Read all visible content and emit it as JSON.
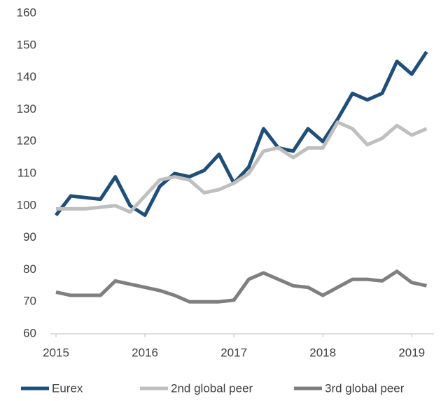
{
  "chart_data": {
    "type": "line",
    "x": [
      2015,
      2015.1667,
      2015.3333,
      2015.5,
      2015.6667,
      2015.8333,
      2016,
      2016.1667,
      2016.3333,
      2016.5,
      2016.6667,
      2016.8333,
      2017,
      2017.1667,
      2017.3333,
      2017.5,
      2017.6667,
      2017.8333,
      2018,
      2018.1667,
      2018.3333,
      2018.5,
      2018.6667,
      2018.8333,
      2019,
      2019.1667
    ],
    "series": [
      {
        "name": "Eurex",
        "color": "#1f4e79",
        "values": [
          97,
          103,
          102.5,
          102,
          109,
          100,
          97,
          106,
          110,
          109,
          111,
          116,
          107,
          112,
          124,
          118,
          117,
          124,
          120,
          127,
          135,
          133,
          135,
          145,
          141,
          148
        ]
      },
      {
        "name": "2nd global peer",
        "color": "#bfbfbf",
        "values": [
          99,
          99,
          99,
          99.5,
          100,
          98,
          103,
          108,
          109,
          108,
          104,
          105,
          107,
          110,
          117,
          118,
          115,
          118,
          118,
          126,
          124,
          119,
          121,
          125,
          122,
          124
        ]
      },
      {
        "name": "3rd global peer",
        "color": "#7f7f7f",
        "values": [
          73,
          72,
          72,
          72,
          76.5,
          75.5,
          74.5,
          73.5,
          72,
          70,
          70,
          70,
          70.5,
          77,
          79,
          77,
          75,
          74.5,
          72,
          74.5,
          77,
          77,
          76.5,
          79.5,
          76,
          75
        ]
      }
    ],
    "xlim": [
      2015,
      2019.25
    ],
    "xticks": [
      2015,
      2016,
      2017,
      2018,
      2019
    ],
    "ylim": [
      60,
      160
    ],
    "yticks": [
      60,
      70,
      80,
      90,
      100,
      110,
      120,
      130,
      140,
      150,
      160
    ],
    "grid": false,
    "legend": "bottom"
  }
}
